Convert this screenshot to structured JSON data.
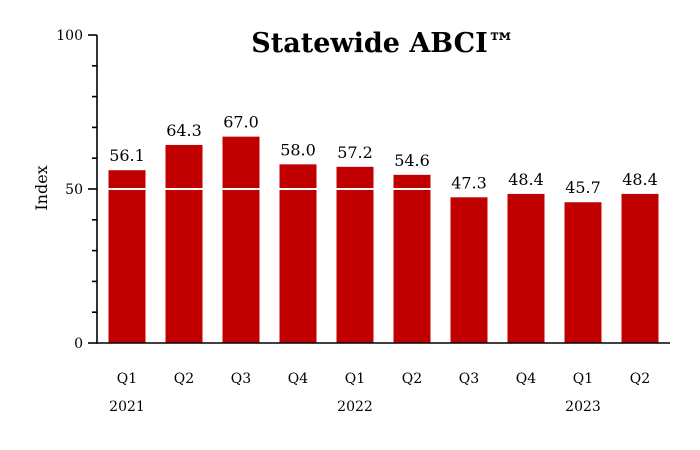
{
  "chart_data": {
    "type": "bar",
    "title": "Statewide ABCI™",
    "ylabel": "Index",
    "xlabel": "",
    "ylim": [
      0,
      100
    ],
    "yticks_labeled": [
      0,
      50,
      100
    ],
    "reference_line": 50,
    "bar_color": "#c00000",
    "reference_line_color": "#ffffff",
    "categories": [
      "Q1",
      "Q2",
      "Q3",
      "Q4",
      "Q1",
      "Q2",
      "Q3",
      "Q4",
      "Q1",
      "Q2"
    ],
    "years": [
      {
        "label": "2021",
        "under_index": 0
      },
      {
        "label": "2022",
        "under_index": 4
      },
      {
        "label": "2023",
        "under_index": 8
      }
    ],
    "values": [
      56.1,
      64.3,
      67.0,
      58.0,
      57.2,
      54.6,
      47.3,
      48.4,
      45.7,
      48.4
    ],
    "value_labels": [
      "56.1",
      "64.3",
      "67.0",
      "58.0",
      "57.2",
      "54.6",
      "47.3",
      "48.4",
      "45.7",
      "48.4"
    ],
    "grid": false,
    "legend": "none"
  }
}
